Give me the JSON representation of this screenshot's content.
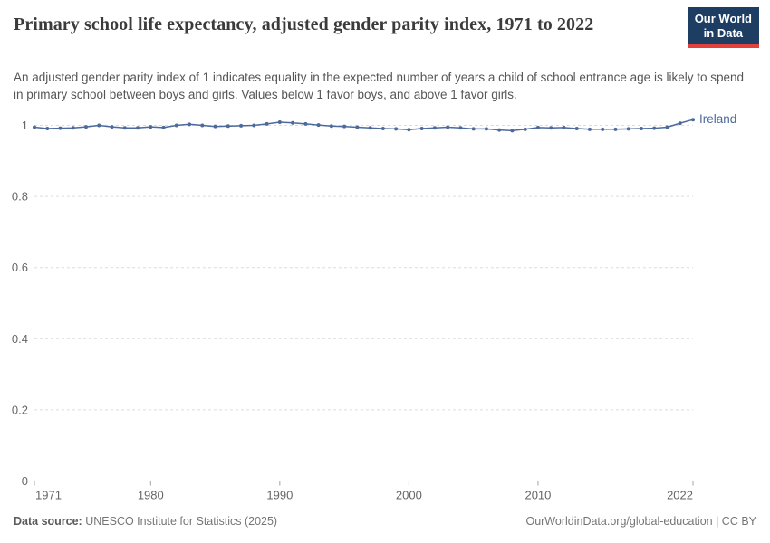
{
  "header": {
    "title": "Primary school life expectancy, adjusted gender parity index, 1971 to 2022",
    "logo": {
      "line1": "Our World",
      "line2": "in Data"
    }
  },
  "subtitle": "An adjusted gender parity index of 1 indicates equality in the expected number of years a child of school entrance age is likely to spend in primary school between boys and girls. Values below 1 favor boys, and above 1 favor girls.",
  "footer": {
    "datasource_label": "Data source:",
    "datasource_value": "UNESCO Institute for Statistics (2025)",
    "license": "OurWorldinData.org/global-education | CC BY"
  },
  "colors": {
    "line": "#4c6a9c",
    "gridline": "#dcdcdc",
    "axis": "#a3a3a3",
    "tick_text": "#666666",
    "logo_bg": "#1d3d63",
    "logo_stripe": "#e0413d"
  },
  "chart_data": {
    "type": "line",
    "title": "Primary school life expectancy, adjusted gender parity index, 1971 to 2022",
    "xlabel": "",
    "ylabel": "",
    "x_ticks": [
      1971,
      1980,
      1990,
      2000,
      2010,
      2022
    ],
    "y_ticks": [
      0,
      0.2,
      0.4,
      0.6,
      0.8,
      1
    ],
    "y_tick_labels": [
      "0",
      "0.2",
      "0.4",
      "0.6",
      "0.8",
      "1"
    ],
    "xlim": [
      1971,
      2022
    ],
    "ylim": [
      0,
      1.03
    ],
    "grid": "horizontal-dashed",
    "legend_position": "end-of-line-label",
    "series": [
      {
        "name": "Ireland",
        "color": "#4c6a9c",
        "x": [
          1971,
          1972,
          1973,
          1974,
          1975,
          1976,
          1977,
          1978,
          1979,
          1980,
          1981,
          1982,
          1983,
          1984,
          1985,
          1986,
          1987,
          1988,
          1989,
          1990,
          1991,
          1992,
          1993,
          1994,
          1995,
          1996,
          1997,
          1998,
          1999,
          2000,
          2001,
          2002,
          2003,
          2004,
          2005,
          2006,
          2007,
          2008,
          2009,
          2010,
          2011,
          2012,
          2013,
          2014,
          2015,
          2016,
          2017,
          2018,
          2019,
          2020,
          2021,
          2022
        ],
        "values": [
          0.995,
          0.991,
          0.992,
          0.993,
          0.996,
          1.0,
          0.996,
          0.993,
          0.993,
          0.996,
          0.994,
          1.0,
          1.003,
          1.0,
          0.997,
          0.998,
          0.999,
          1.0,
          1.004,
          1.009,
          1.007,
          1.004,
          1.001,
          0.998,
          0.997,
          0.995,
          0.993,
          0.991,
          0.99,
          0.988,
          0.991,
          0.993,
          0.995,
          0.993,
          0.99,
          0.99,
          0.987,
          0.985,
          0.989,
          0.994,
          0.993,
          0.994,
          0.991,
          0.989,
          0.989,
          0.989,
          0.99,
          0.991,
          0.992,
          0.995,
          1.006,
          1.016
        ]
      }
    ]
  }
}
